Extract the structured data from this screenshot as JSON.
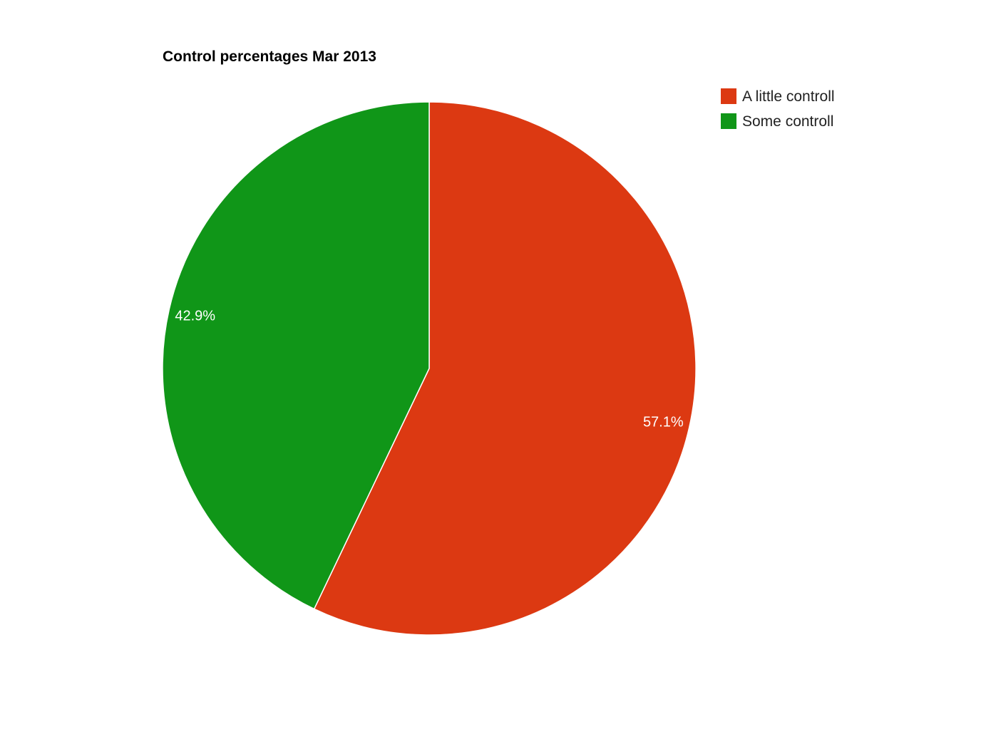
{
  "chart_data": {
    "type": "pie",
    "title": "Control percentages Mar 2013",
    "slices": [
      {
        "label": "A little controll",
        "value": 57.1,
        "display": "57.1%",
        "color": "#dc3912"
      },
      {
        "label": "Some controll",
        "value": 42.9,
        "display": "42.9%",
        "color": "#109618"
      }
    ],
    "legend_position": "top-right",
    "start_angle": "12 o'clock",
    "direction": "clockwise"
  }
}
